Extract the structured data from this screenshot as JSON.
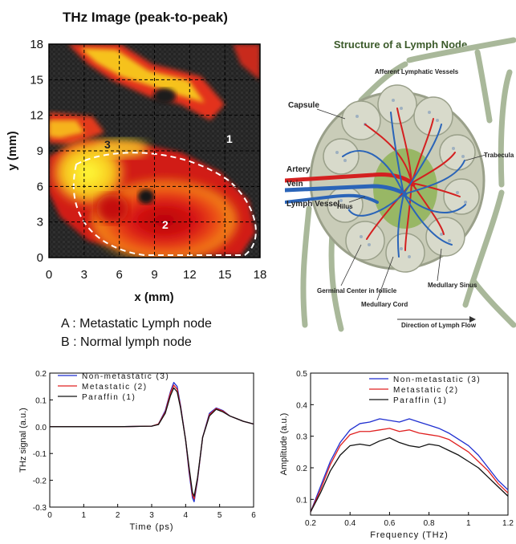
{
  "thz_image": {
    "title": "THz Image (peak-to-peak)",
    "xlabel": "x (mm)",
    "ylabel": "y (mm)",
    "ticks": [
      0,
      3,
      6,
      9,
      12,
      15,
      18
    ],
    "region_labels": [
      "1",
      "2",
      "3"
    ]
  },
  "lymph_diagram": {
    "title": "Structure of a Lymph Node",
    "labels": {
      "afferent": "Afferent Lymphatic Vessels",
      "capsule": "Capsule",
      "trabecula": "Trabecula",
      "artery": "Artery",
      "vein": "Vein",
      "lymph_vessel": "Lymph Vessel",
      "hilus": "Hilus",
      "germinal": "Germinal Center in follicle",
      "medullary_cord": "Medullary Cord",
      "medullary_sinus": "Medullary Sinus",
      "direction": "Direction of Lymph Flow"
    },
    "colors": {
      "artery": "#d42020",
      "vein": "#2a64b8",
      "tissue": "#c9ccb8",
      "vessel": "#a9b89a"
    }
  },
  "legend": {
    "a": "A : Metastatic Lymph node",
    "b": "B : Normal lymph node"
  },
  "chart_data": [
    {
      "type": "line",
      "xlabel": "Time (ps)",
      "ylabel": "THz signal (a.u.)",
      "xlim": [
        0,
        6
      ],
      "ylim": [
        -0.3,
        0.2
      ],
      "xticks": [
        0,
        1,
        2,
        3,
        4,
        5,
        6
      ],
      "yticks": [
        -0.3,
        -0.2,
        -0.1,
        0.0,
        0.1,
        0.2
      ],
      "series": [
        {
          "name": "Non-metastatic (3)",
          "color": "#1f2fd0",
          "x": [
            0,
            1,
            2,
            3,
            3.2,
            3.4,
            3.55,
            3.65,
            3.75,
            3.85,
            4.0,
            4.1,
            4.2,
            4.25,
            4.35,
            4.5,
            4.7,
            4.9,
            5.1,
            5.3,
            5.5,
            5.7,
            5.85,
            6.0
          ],
          "y": [
            0,
            0,
            0,
            0.002,
            0.01,
            0.06,
            0.13,
            0.165,
            0.15,
            0.08,
            -0.05,
            -0.17,
            -0.265,
            -0.28,
            -0.2,
            -0.04,
            0.05,
            0.07,
            0.06,
            0.04,
            0.03,
            0.02,
            0.015,
            0.01
          ]
        },
        {
          "name": "Metastatic (2)",
          "color": "#e02020",
          "x": [
            0,
            1,
            2,
            3,
            3.2,
            3.4,
            3.55,
            3.65,
            3.75,
            3.85,
            4.0,
            4.1,
            4.2,
            4.25,
            4.35,
            4.5,
            4.7,
            4.9,
            5.1,
            5.3,
            5.5,
            5.7,
            5.85,
            6.0
          ],
          "y": [
            0,
            0,
            0,
            0.002,
            0.01,
            0.055,
            0.125,
            0.155,
            0.14,
            0.075,
            -0.05,
            -0.16,
            -0.255,
            -0.27,
            -0.195,
            -0.04,
            0.045,
            0.068,
            0.058,
            0.04,
            0.03,
            0.02,
            0.015,
            0.01
          ]
        },
        {
          "name": "Paraffin (1)",
          "color": "#111111",
          "x": [
            0,
            1,
            2,
            3,
            3.2,
            3.4,
            3.55,
            3.65,
            3.75,
            3.85,
            4.0,
            4.1,
            4.2,
            4.25,
            4.35,
            4.5,
            4.7,
            4.9,
            5.1,
            5.3,
            5.5,
            5.7,
            5.85,
            6.0
          ],
          "y": [
            0,
            0,
            0,
            0.002,
            0.008,
            0.05,
            0.115,
            0.145,
            0.13,
            0.07,
            -0.05,
            -0.15,
            -0.245,
            -0.26,
            -0.19,
            -0.04,
            0.04,
            0.065,
            0.055,
            0.04,
            0.03,
            0.02,
            0.015,
            0.01
          ]
        }
      ]
    },
    {
      "type": "line",
      "xlabel": "Frequency (THz)",
      "ylabel": "Amplitude (a.u.)",
      "xlim": [
        0.2,
        1.2
      ],
      "ylim": [
        0.05,
        0.5
      ],
      "xticks": [
        0.2,
        0.4,
        0.6,
        0.8,
        1.0,
        1.2
      ],
      "yticks": [
        0.1,
        0.2,
        0.3,
        0.4,
        0.5
      ],
      "series": [
        {
          "name": "Non-metastatic (3)",
          "color": "#1f2fd0",
          "x": [
            0.2,
            0.25,
            0.3,
            0.35,
            0.4,
            0.45,
            0.5,
            0.55,
            0.6,
            0.65,
            0.7,
            0.75,
            0.8,
            0.85,
            0.9,
            0.95,
            1.0,
            1.05,
            1.1,
            1.15,
            1.2
          ],
          "y": [
            0.06,
            0.14,
            0.22,
            0.28,
            0.32,
            0.34,
            0.345,
            0.355,
            0.35,
            0.345,
            0.355,
            0.345,
            0.335,
            0.325,
            0.31,
            0.29,
            0.27,
            0.24,
            0.2,
            0.16,
            0.13
          ]
        },
        {
          "name": "Metastatic (2)",
          "color": "#e02020",
          "x": [
            0.2,
            0.25,
            0.3,
            0.35,
            0.4,
            0.45,
            0.5,
            0.55,
            0.6,
            0.65,
            0.7,
            0.75,
            0.8,
            0.85,
            0.9,
            0.95,
            1.0,
            1.05,
            1.1,
            1.15,
            1.2
          ],
          "y": [
            0.06,
            0.13,
            0.21,
            0.27,
            0.305,
            0.315,
            0.315,
            0.32,
            0.325,
            0.315,
            0.32,
            0.31,
            0.305,
            0.3,
            0.29,
            0.27,
            0.25,
            0.22,
            0.19,
            0.15,
            0.12
          ]
        },
        {
          "name": "Paraffin (1)",
          "color": "#111111",
          "x": [
            0.2,
            0.25,
            0.3,
            0.35,
            0.4,
            0.45,
            0.5,
            0.55,
            0.6,
            0.65,
            0.7,
            0.75,
            0.8,
            0.85,
            0.9,
            0.95,
            1.0,
            1.05,
            1.1,
            1.15,
            1.2
          ],
          "y": [
            0.06,
            0.12,
            0.19,
            0.24,
            0.27,
            0.275,
            0.27,
            0.285,
            0.295,
            0.28,
            0.27,
            0.265,
            0.275,
            0.27,
            0.255,
            0.24,
            0.22,
            0.2,
            0.17,
            0.14,
            0.11
          ]
        }
      ]
    }
  ]
}
